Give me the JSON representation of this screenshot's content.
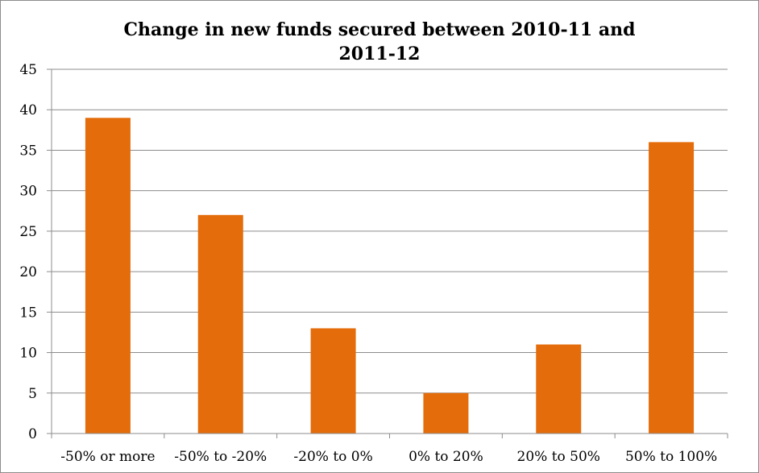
{
  "chart_data": {
    "type": "bar",
    "title_lines": [
      "Change in new funds secured between 2010-11 and",
      "2011-12"
    ],
    "categories": [
      "-50% or more",
      "-50% to -20%",
      "-20% to 0%",
      "0% to 20%",
      "20% to 50%",
      "50% to 100%"
    ],
    "values": [
      39,
      27,
      13,
      5,
      11,
      36
    ],
    "xlabel": "",
    "ylabel": "",
    "ylim": [
      0,
      45
    ],
    "yticks": [
      0,
      5,
      10,
      15,
      20,
      25,
      30,
      35,
      40,
      45
    ],
    "grid": true,
    "legend": "none",
    "bar_color": "#E46C0A",
    "grid_color": "#8c8c8c"
  }
}
